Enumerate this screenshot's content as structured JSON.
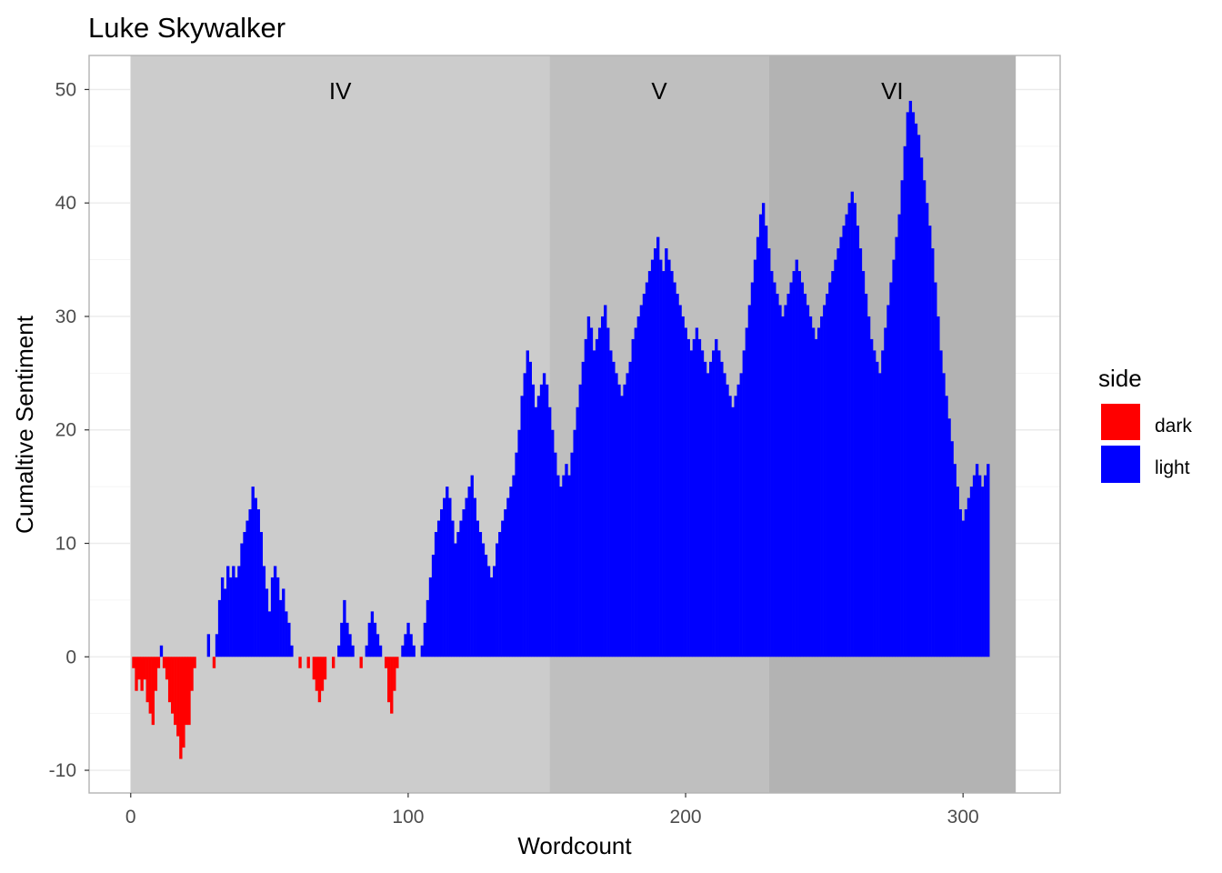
{
  "chart_data": {
    "type": "bar",
    "title": "Luke Skywalker",
    "xlabel": "Wordcount",
    "ylabel": "Cumaltive Sentiment",
    "xlim": [
      -15,
      335
    ],
    "ylim": [
      -12,
      53
    ],
    "x_ticks": [
      0,
      100,
      200,
      300
    ],
    "y_ticks": [
      -10,
      0,
      10,
      20,
      30,
      40,
      50
    ],
    "grid": true,
    "colors": {
      "dark": "#FF0000",
      "light": "#0000FF"
    },
    "regions": [
      {
        "label": "IV",
        "start": 0,
        "end": 151,
        "color": "#CCCCCC"
      },
      {
        "label": "V",
        "start": 151,
        "end": 230,
        "color": "#BFBFBF"
      },
      {
        "label": "VI",
        "start": 230,
        "end": 319,
        "color": "#B3B3B3"
      }
    ],
    "legend": {
      "title": "side",
      "position": "right",
      "entries": [
        {
          "key": "dark",
          "label": "dark"
        },
        {
          "key": "light",
          "label": "light"
        }
      ]
    },
    "series": [
      {
        "key": "sentiment",
        "x_start": 1,
        "values": [
          -1,
          -3,
          -2,
          -3,
          -2,
          -4,
          -5,
          -6,
          -3,
          -1,
          1,
          -1,
          -2,
          -4,
          -5,
          -6,
          -7,
          -9,
          -8,
          -6,
          -6,
          -3,
          -1,
          0,
          0,
          0,
          0,
          2,
          0,
          -1,
          2,
          5,
          7,
          6,
          8,
          7,
          8,
          7,
          8,
          10,
          11,
          12,
          13,
          15,
          14,
          13,
          11,
          8,
          6,
          4,
          7,
          8,
          7,
          5,
          6,
          4,
          3,
          1,
          0,
          0,
          -1,
          0,
          0,
          -1,
          0,
          -2,
          -3,
          -4,
          -3,
          -2,
          0,
          0,
          -1,
          0,
          1,
          3,
          5,
          3,
          2,
          1,
          0,
          0,
          -1,
          0,
          1,
          3,
          4,
          3,
          2,
          1,
          0,
          -1,
          -4,
          -5,
          -3,
          -1,
          0,
          1,
          2,
          3,
          2,
          1,
          0,
          0,
          1,
          3,
          5,
          7,
          9,
          11,
          12,
          13,
          14,
          15,
          14,
          12,
          10,
          11,
          12,
          13,
          14,
          15,
          16,
          14,
          12,
          11,
          10,
          9,
          8,
          7,
          8,
          10,
          11,
          12,
          13,
          14,
          15,
          16,
          18,
          20,
          23,
          25,
          27,
          26,
          24,
          22,
          23,
          24,
          25,
          24,
          22,
          20,
          18,
          16,
          15,
          16,
          17,
          16,
          18,
          20,
          22,
          24,
          26,
          28,
          30,
          29,
          27,
          28,
          29,
          30,
          31,
          29,
          27,
          26,
          25,
          24,
          23,
          24,
          25,
          26,
          28,
          29,
          30,
          31,
          32,
          33,
          34,
          35,
          36,
          37,
          35,
          34,
          36,
          35,
          34,
          33,
          32,
          31,
          30,
          29,
          28,
          27,
          28,
          29,
          28,
          27,
          26,
          25,
          26,
          27,
          28,
          27,
          26,
          25,
          24,
          23,
          22,
          23,
          24,
          25,
          27,
          29,
          31,
          33,
          35,
          37,
          39,
          40,
          38,
          36,
          34,
          33,
          32,
          31,
          30,
          31,
          32,
          33,
          34,
          35,
          34,
          33,
          32,
          31,
          30,
          29,
          28,
          29,
          30,
          31,
          32,
          33,
          34,
          35,
          36,
          37,
          38,
          39,
          40,
          41,
          40,
          38,
          36,
          34,
          32,
          30,
          28,
          27,
          26,
          25,
          27,
          29,
          31,
          33,
          35,
          37,
          39,
          42,
          45,
          48,
          49,
          48,
          47,
          46,
          44,
          42,
          40,
          38,
          36,
          33,
          30,
          27,
          25,
          23,
          21,
          19,
          17,
          15,
          13,
          12,
          13,
          14,
          15,
          16,
          17,
          16,
          15,
          16,
          17
        ]
      }
    ],
    "x_tick_labels": [
      "0",
      "100",
      "200",
      "300"
    ],
    "y_tick_labels": [
      "-10",
      "0",
      "10",
      "20",
      "30",
      "40",
      "50"
    ]
  }
}
